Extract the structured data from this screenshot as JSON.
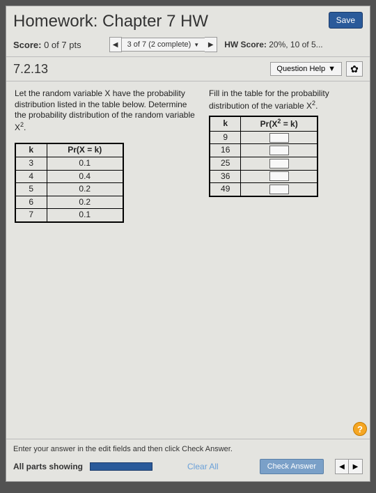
{
  "title": "Homework: Chapter 7 HW",
  "save_label": "Save",
  "score_label": "Score:",
  "score_value": "0 of 7 pts",
  "nav_position": "3 of 7 (2 complete)",
  "hw_score_label": "HW Score:",
  "hw_score_value": "20%, 10 of 5...",
  "question_number": "7.2.13",
  "question_help_label": "Question Help",
  "prompt_left": "Let the random variable X have the probability distribution listed in the table below. Determine the probability distribution of the random variable X",
  "prompt_left_sup": "2",
  "prompt_left_end": ".",
  "prompt_right": "Fill in the table for the probability distribution of the variable X",
  "prompt_right_sup": "2",
  "prompt_right_end": ".",
  "table1": {
    "head_k": "k",
    "head_p": "Pr(X = k)",
    "rows": [
      {
        "k": "3",
        "p": "0.1"
      },
      {
        "k": "4",
        "p": "0.4"
      },
      {
        "k": "5",
        "p": "0.2"
      },
      {
        "k": "6",
        "p": "0.2"
      },
      {
        "k": "7",
        "p": "0.1"
      }
    ]
  },
  "table2": {
    "head_k": "k",
    "head_p_pre": "Pr(X",
    "head_p_sup": "2",
    "head_p_post": " = k)",
    "rows": [
      {
        "k": "9"
      },
      {
        "k": "16"
      },
      {
        "k": "25"
      },
      {
        "k": "36"
      },
      {
        "k": "49"
      }
    ]
  },
  "footer_instruction": "Enter your answer in the edit fields and then click Check Answer.",
  "parts_showing": "All parts showing",
  "clear_all": "Clear All",
  "check_answer": "Check Answer",
  "help_badge": "?",
  "colors": {
    "primary": "#2a5a9a",
    "panel_bg": "#e4e4e0",
    "badge": "#f5a623"
  }
}
